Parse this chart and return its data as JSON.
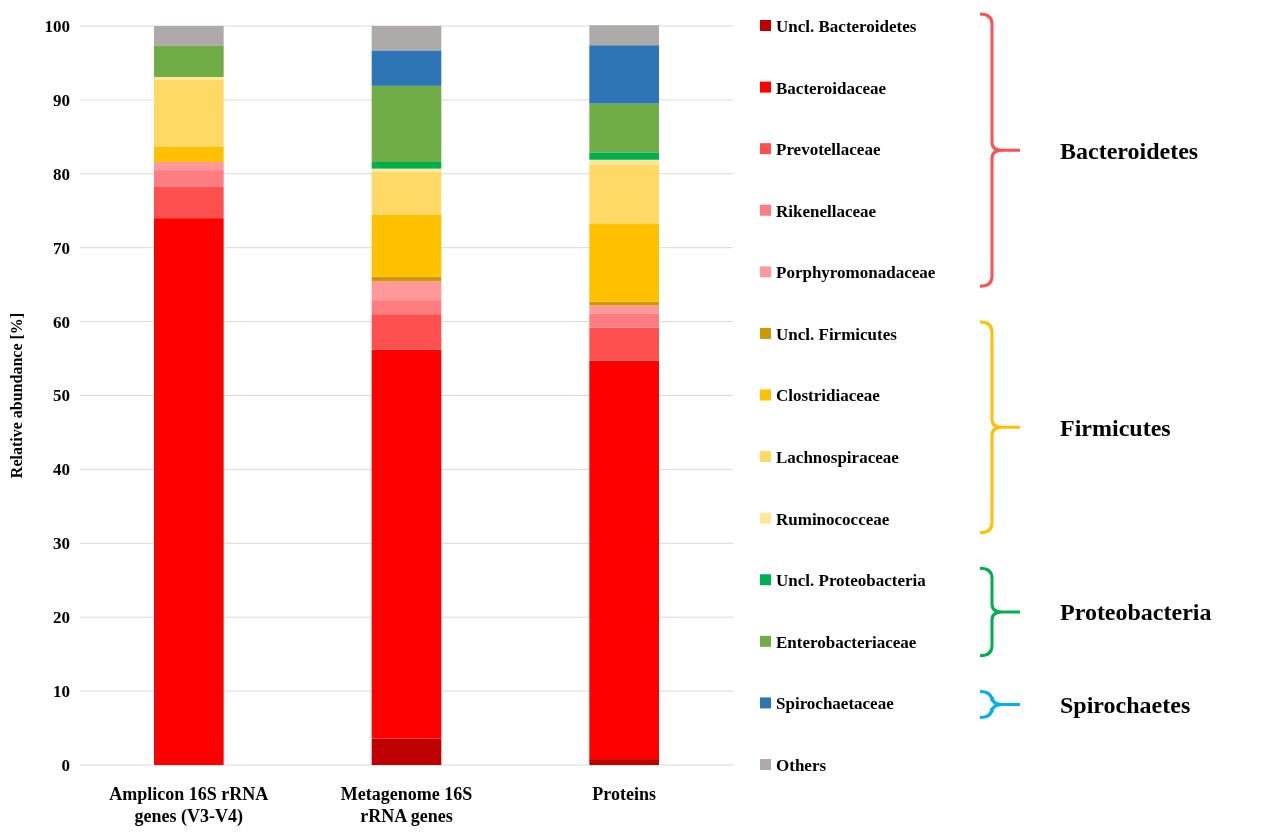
{
  "chart_data": {
    "type": "bar",
    "stacked": true,
    "ylabel": "Relative abundance [%]",
    "categories": [
      "Amplicon 16S rRNA genes (V3-V4)",
      "Metagenome 16S rRNA genes",
      "Proteins"
    ],
    "ylim": [
      0,
      100
    ],
    "yticks": [
      0,
      10,
      20,
      30,
      40,
      50,
      60,
      70,
      80,
      90,
      100
    ],
    "grid": "y",
    "legend": "right",
    "series": [
      {
        "name": "Uncl. Bacteroidetes",
        "color": "#c00000",
        "values": [
          0,
          3.6,
          0.8
        ]
      },
      {
        "name": "Bacteroidaceae",
        "color": "#ff0000",
        "values": [
          74.0,
          52.6,
          53.9
        ]
      },
      {
        "name": "Prevotellaceae",
        "color": "#ff5050",
        "values": [
          4.3,
          4.8,
          4.5
        ]
      },
      {
        "name": "Rikenellaceae",
        "color": "#ff7c80",
        "values": [
          2.2,
          1.9,
          1.9
        ]
      },
      {
        "name": "Porphyromonadaceae",
        "color": "#ff9999",
        "values": [
          1.1,
          2.6,
          1.1
        ]
      },
      {
        "name": "Uncl. Firmicutes",
        "color": "#cc9900",
        "values": [
          0,
          0.6,
          0.5
        ]
      },
      {
        "name": "Clostridiaceae",
        "color": "#ffc000",
        "values": [
          2.1,
          8.4,
          10.5
        ]
      },
      {
        "name": "Lachnospiraceae",
        "color": "#ffd966",
        "values": [
          9.0,
          5.8,
          8.0
        ]
      },
      {
        "name": "Ruminococceae",
        "color": "#ffe699",
        "values": [
          0.4,
          0.4,
          0.7
        ]
      },
      {
        "name": "Uncl. Proteobacteria",
        "color": "#00b050",
        "values": [
          0,
          0.9,
          1.0
        ]
      },
      {
        "name": "Enterobacteriaceae",
        "color": "#70ad47",
        "values": [
          4.2,
          10.3,
          6.6
        ]
      },
      {
        "name": "Spirochaetaceae",
        "color": "#2e75b6",
        "values": [
          0,
          4.8,
          7.9
        ]
      },
      {
        "name": "Others",
        "color": "#aeaaaa",
        "values": [
          2.7,
          3.3,
          2.7
        ]
      }
    ],
    "annotations": [
      "Bacteroidetes",
      "Firmicutes",
      "Proteobacteria",
      "Spirochaetes"
    ]
  }
}
